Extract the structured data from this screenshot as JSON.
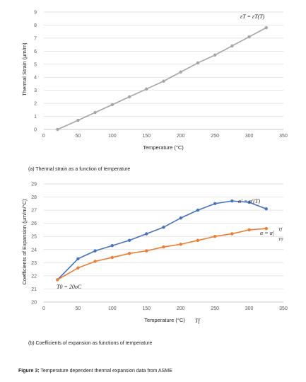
{
  "chart_data": [
    {
      "type": "line",
      "title": "",
      "xlabel": "Temperature (°C)",
      "ylabel": "Thermal Strain (μm/m)",
      "xlim": [
        0,
        350
      ],
      "ylim": [
        0,
        9
      ],
      "x_ticks": [
        "0",
        "50",
        "100",
        "150",
        "200",
        "250",
        "300",
        "350"
      ],
      "y_ticks": [
        "0",
        "1",
        "2",
        "3",
        "4",
        "5",
        "6",
        "7",
        "8",
        "9"
      ],
      "grid": "horizontal",
      "series": [
        {
          "color": "#a5a5a5",
          "x": [
            20,
            50,
            75,
            100,
            125,
            150,
            175,
            200,
            225,
            250,
            275,
            300,
            325
          ],
          "values": [
            0.0,
            0.7,
            1.3,
            1.9,
            2.5,
            3.1,
            3.7,
            4.4,
            5.1,
            5.7,
            6.4,
            7.1,
            7.8
          ]
        }
      ],
      "annotations": [
        "εT = εT(T)"
      ],
      "caption": "(a)  Thermal strain as a function of temperature"
    },
    {
      "type": "line",
      "title": "",
      "xlabel": "Temperature (°C)",
      "xlabel_extra": "Tf",
      "ylabel": "Coefficients of Expansion (μm/m/°C)",
      "xlim": [
        0,
        350
      ],
      "ylim": [
        20,
        29
      ],
      "x_ticks": [
        "0",
        "50",
        "100",
        "150",
        "200",
        "250",
        "300",
        "350"
      ],
      "y_ticks": [
        "20",
        "21",
        "22",
        "23",
        "24",
        "25",
        "26",
        "27",
        "28",
        "29"
      ],
      "grid": "horizontal",
      "series": [
        {
          "color": "#4472c4",
          "x": [
            20,
            50,
            75,
            100,
            125,
            150,
            175,
            200,
            225,
            250,
            275,
            300,
            325
          ],
          "values": [
            21.7,
            23.3,
            23.9,
            24.3,
            24.7,
            25.2,
            25.7,
            26.4,
            27.0,
            27.5,
            27.7,
            27.6,
            27.1
          ]
        },
        {
          "color": "#ed7d31",
          "x": [
            20,
            50,
            75,
            100,
            125,
            150,
            175,
            200,
            225,
            250,
            275,
            300,
            325
          ],
          "values": [
            21.7,
            22.6,
            23.1,
            23.4,
            23.7,
            23.9,
            24.2,
            24.4,
            24.7,
            25.0,
            25.2,
            25.5,
            25.6
          ]
        }
      ],
      "annotations": [
        "α′ = α′(T)",
        "α = α|",
        "Tf",
        "T0",
        "T0 = 20oC"
      ],
      "caption": "(b)  Coefficients of expansion as functions of temperature"
    }
  ],
  "figure_caption_label": "Figure 3:",
  "figure_caption_text": " Temperature dependent thermal expansion data from ASME"
}
